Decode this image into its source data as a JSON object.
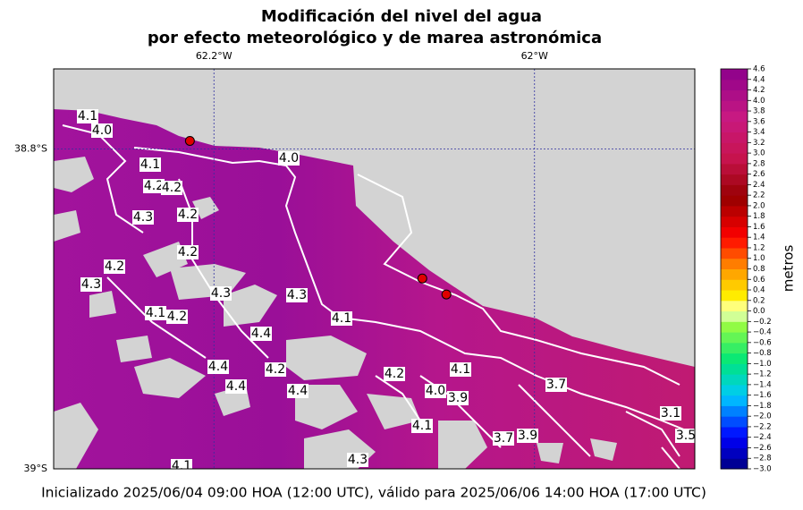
{
  "chart_data": {
    "type": "contour-map",
    "title": "Modificación del nivel del agua",
    "subtitle": "por efecto meteorológico y de marea astronómica",
    "xlim": [
      -62.3,
      -61.9
    ],
    "ylim": [
      -39.0,
      -38.75
    ],
    "xticks": [
      {
        "value": -62.2,
        "label": "62.2°W"
      },
      {
        "value": -62,
        "label": "62°W"
      }
    ],
    "yticks": [
      {
        "value": -38.8,
        "label": "38.8°S"
      },
      {
        "value": -39,
        "label": "39°S"
      }
    ],
    "grid": true,
    "stations": {
      "lon": [
        -62.215,
        -62.07,
        -62.055
      ],
      "lat": [
        -38.795,
        -38.881,
        -38.891
      ],
      "color": "#e00000"
    },
    "colorbar_label": "metros",
    "colorbar_lim": [
      -3.0,
      4.6
    ],
    "colorbar_ticks": [
      {
        "value": -3.0,
        "label": "−3.0"
      },
      {
        "value": -2.8,
        "label": "−2.8"
      },
      {
        "value": -2.6,
        "label": "−2.6"
      },
      {
        "value": -2.4,
        "label": "−2.4"
      },
      {
        "value": -2.2,
        "label": "−2.2"
      },
      {
        "value": -2.0,
        "label": "−2.0"
      },
      {
        "value": -1.8,
        "label": "−1.8"
      },
      {
        "value": -1.6,
        "label": "−1.6"
      },
      {
        "value": -1.4,
        "label": "−1.4"
      },
      {
        "value": -1.2,
        "label": "−1.2"
      },
      {
        "value": -1.0,
        "label": "−1.0"
      },
      {
        "value": -0.8,
        "label": "−0.8"
      },
      {
        "value": -0.6,
        "label": "−0.6"
      },
      {
        "value": -0.4,
        "label": "−0.4"
      },
      {
        "value": -0.2,
        "label": "−0.2"
      },
      {
        "value": 0.0,
        "label": "0.0"
      },
      {
        "value": 0.2,
        "label": "0.2"
      },
      {
        "value": 0.4,
        "label": "0.4"
      },
      {
        "value": 0.6,
        "label": "0.6"
      },
      {
        "value": 0.8,
        "label": "0.8"
      },
      {
        "value": 1.0,
        "label": "1.0"
      },
      {
        "value": 1.2,
        "label": "1.2"
      },
      {
        "value": 1.4,
        "label": "1.4"
      },
      {
        "value": 1.6,
        "label": "1.6"
      },
      {
        "value": 1.8,
        "label": "1.8"
      },
      {
        "value": 2.0,
        "label": "2.0"
      },
      {
        "value": 2.2,
        "label": "2.2"
      },
      {
        "value": 2.4,
        "label": "2.4"
      },
      {
        "value": 2.6,
        "label": "2.6"
      },
      {
        "value": 2.8,
        "label": "2.8"
      },
      {
        "value": 3.0,
        "label": "3.0"
      },
      {
        "value": 3.2,
        "label": "3.2"
      },
      {
        "value": 3.4,
        "label": "3.4"
      },
      {
        "value": 3.6,
        "label": "3.6"
      },
      {
        "value": 3.8,
        "label": "3.8"
      },
      {
        "value": 4.0,
        "label": "4.0"
      },
      {
        "value": 4.2,
        "label": "4.2"
      },
      {
        "value": 4.4,
        "label": "4.4"
      },
      {
        "value": 4.6,
        "label": "4.6"
      }
    ],
    "contour_labels": [
      "4.0",
      "4.0",
      "4.1",
      "4.1",
      "4.2",
      "4.2",
      "4.2",
      "4.3",
      "4.3",
      "4.2",
      "4.2",
      "4.3",
      "4.1",
      "4.3",
      "4.4",
      "4.2",
      "4.4",
      "4.4",
      "4.4",
      "4.2",
      "4.1",
      "4.1",
      "4.0",
      "3.9",
      "3.7",
      "3.7",
      "3.9",
      "3.5",
      "3.1",
      "4.1",
      "4.2",
      "4.1",
      "4.3"
    ],
    "footer": "Inicializado 2025/06/04 09:00 HOA (12:00 UTC), válido para 2025/06/06 14:00 HOA (17:00 UTC)"
  }
}
